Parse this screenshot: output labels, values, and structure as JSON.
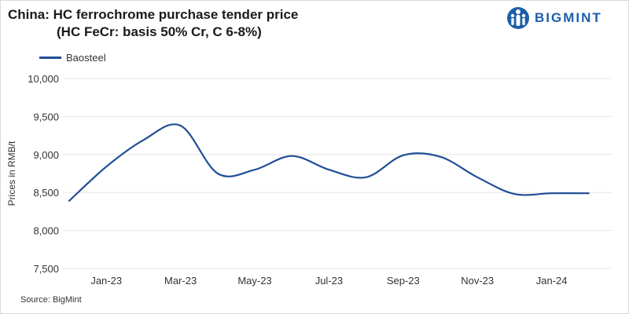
{
  "header": {
    "title_line1": "China: HC ferrochrome purchase tender price",
    "title_line2": "(HC FeCr: basis 50% Cr, C 6-8%)",
    "logo_text": "BIGMINT",
    "logo_icon": "bigmint-logo-icon"
  },
  "footer": {
    "source": "Source: BigMint"
  },
  "colors": {
    "series": "#1f4e96",
    "grid": "#e6e6e6",
    "logo": "#1c5fa8"
  },
  "chart_data": {
    "type": "line",
    "ylabel": "Prices in RMB/t",
    "ylim": [
      7500,
      10000
    ],
    "yticks": [
      7500,
      8000,
      8500,
      9000,
      9500,
      10000
    ],
    "ytick_labels": [
      "7,500",
      "8,000",
      "8,500",
      "9,000",
      "9,500",
      "10,000"
    ],
    "xtick_labels": [
      "Jan-23",
      "Mar-23",
      "May-23",
      "Jul-23",
      "Sep-23",
      "Nov-23",
      "Jan-24"
    ],
    "grid": "horizontal",
    "legend": "top-left",
    "x": [
      "2022-12",
      "2023-01",
      "2023-02",
      "2023-03",
      "2023-04",
      "2023-05",
      "2023-06",
      "2023-07",
      "2023-08",
      "2023-09",
      "2023-10",
      "2023-11",
      "2023-12",
      "2024-01",
      "2024-02"
    ],
    "series": [
      {
        "name": "Baosteel",
        "values": [
          8390,
          8840,
          9190,
          9380,
          8750,
          8800,
          8980,
          8800,
          8700,
          8990,
          8970,
          8700,
          8480,
          8490,
          8490
        ]
      }
    ]
  }
}
